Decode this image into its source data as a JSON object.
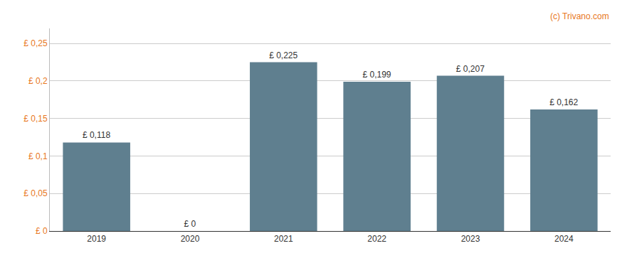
{
  "chart_data": {
    "type": "bar",
    "categories": [
      "2019",
      "2020",
      "2021",
      "2022",
      "2023",
      "2024"
    ],
    "values": [
      0.118,
      0.0,
      0.225,
      0.199,
      0.207,
      0.162
    ],
    "value_labels": [
      "£ 0,118",
      "£ 0",
      "£ 0,225",
      "£ 0,199",
      "£ 0,207",
      "£ 0,162"
    ],
    "data_labels": true,
    "color": "#5f7f8f",
    "ylim": [
      0,
      0.27
    ],
    "yticks": [
      {
        "value": 0.0,
        "label": "£ 0"
      },
      {
        "value": 0.05,
        "label": "£ 0,05"
      },
      {
        "value": 0.1,
        "label": "£ 0,1"
      },
      {
        "value": 0.15,
        "label": "£ 0,15"
      },
      {
        "value": 0.2,
        "label": "£ 0,2"
      },
      {
        "value": 0.25,
        "label": "£ 0,25"
      }
    ],
    "grid": true,
    "annotations": [
      "(c) Trivano.com"
    ]
  }
}
